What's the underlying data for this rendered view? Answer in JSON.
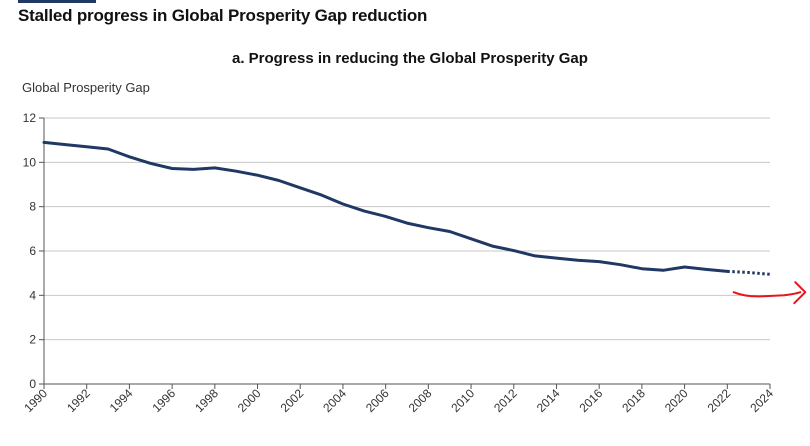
{
  "title": "Stalled progress in Global Prosperity Gap reduction",
  "chart_data": {
    "type": "line",
    "title": "a. Progress in reducing the Global Prosperity Gap",
    "xlabel": "",
    "ylabel": "Global Prosperity Gap",
    "xlim": [
      1990,
      2024
    ],
    "ylim": [
      0,
      12
    ],
    "x_ticks": [
      "1990",
      "1992",
      "1994",
      "1996",
      "1998",
      "2000",
      "2002",
      "2004",
      "2006",
      "2008",
      "2010",
      "2012",
      "2014",
      "2016",
      "2018",
      "2020",
      "2022",
      "2024"
    ],
    "y_ticks": [
      "0",
      "2",
      "4",
      "6",
      "8",
      "10",
      "12"
    ],
    "grid": "horizontal",
    "series": [
      {
        "style": "solid",
        "color": "#1f3864",
        "x": [
          1990,
          1991,
          1992,
          1993,
          1994,
          1995,
          1996,
          1997,
          1998,
          1999,
          2000,
          2001,
          2002,
          2003,
          2004,
          2005,
          2006,
          2007,
          2008,
          2009,
          2010,
          2011,
          2012,
          2013,
          2014,
          2015,
          2016,
          2017,
          2018,
          2019,
          2020,
          2021,
          2022
        ],
        "y": [
          10.9,
          10.8,
          10.7,
          10.6,
          10.25,
          9.95,
          9.72,
          9.68,
          9.75,
          9.6,
          9.42,
          9.18,
          8.85,
          8.52,
          8.12,
          7.8,
          7.56,
          7.26,
          7.05,
          6.88,
          6.55,
          6.22,
          6.02,
          5.78,
          5.68,
          5.58,
          5.52,
          5.38,
          5.2,
          5.13,
          5.28,
          5.17,
          5.08
        ]
      },
      {
        "style": "dotted",
        "color": "#1f3864",
        "x": [
          2022,
          2023,
          2024
        ],
        "y": [
          5.08,
          5.03,
          4.95
        ]
      }
    ],
    "annotations": [
      {
        "type": "arrow",
        "color": "#e8141b",
        "x": [
          2022.3,
          2024.2
        ],
        "y": [
          4.05,
          4.05
        ]
      }
    ]
  }
}
